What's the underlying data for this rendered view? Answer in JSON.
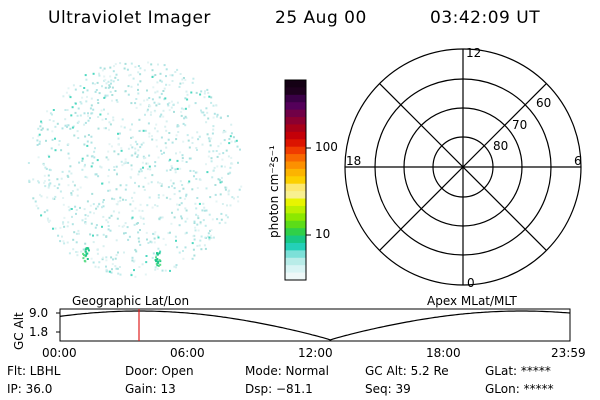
{
  "header": {
    "instrument": "Ultraviolet Imager",
    "date": "25 Aug 00",
    "time": "03:42:09 UT"
  },
  "colorbar": {
    "unit_label": "photon cm⁻²s⁻¹",
    "ticks": [
      "100",
      "10"
    ],
    "colors": [
      "#140014",
      "#1e001e",
      "#3a0046",
      "#54005a",
      "#700046",
      "#8c0030",
      "#a80018",
      "#c40008",
      "#dc1400",
      "#f03c00",
      "#f86800",
      "#fc9000",
      "#fcb400",
      "#fcd000",
      "#fce870",
      "#f8f090",
      "#e8f400",
      "#bcf000",
      "#8ce800",
      "#5cdc18",
      "#30d048",
      "#18c884",
      "#24d0b8",
      "#7ce0d8",
      "#b8ece8",
      "#d8f4f4",
      "#eef8f8"
    ]
  },
  "polar": {
    "mlt_labels": {
      "top": "12",
      "left": "18",
      "right": "6",
      "bottom": "0"
    },
    "lat_labels": [
      "60",
      "70",
      "80"
    ]
  },
  "panels": {
    "left_label": "Geographic Lat/Lon",
    "right_label": "Apex MLat/MLT"
  },
  "timeline": {
    "axis_label": "GC Alt",
    "y_ticks": [
      "9.0",
      "1.8"
    ],
    "x_ticks": [
      "00:00",
      "06:00",
      "12:00",
      "18:00",
      "23:59"
    ]
  },
  "info": {
    "flt": "Flt: LBHL",
    "ip": "IP: 36.0",
    "door": "Door: Open",
    "gain": "Gain: 13",
    "mode": "Mode: Normal",
    "dsp": "Dsp: −81.1",
    "gcalt": "GC Alt: 5.2 Re",
    "seq": "Seq: 39",
    "glat": "GLat: *****",
    "glon": "GLon: *****"
  }
}
